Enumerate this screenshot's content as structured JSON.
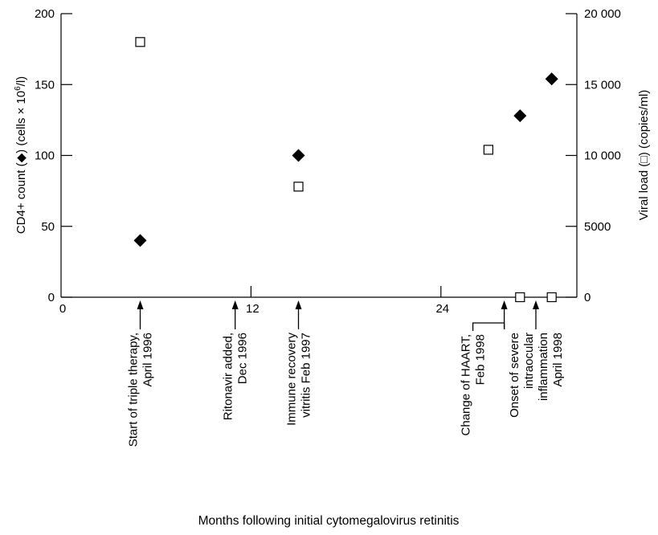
{
  "chart_data": {
    "type": "scatter",
    "xlabel": "Months following initial cytomegalovirus retinitis",
    "ylabel_left": {
      "pre": "CD4+ count (",
      "post": ") (cells × 10",
      "sup": "6",
      "end": "/l)"
    },
    "ylabel_right": {
      "pre": "Viral load (",
      "post": ") (copies/ml)"
    },
    "xlim": [
      0,
      30
    ],
    "ylim_left": [
      0,
      200
    ],
    "ylim_right": [
      0,
      20000
    ],
    "x_ticks": [
      {
        "value": 0,
        "label": "0"
      },
      {
        "value": 12,
        "label": "12"
      },
      {
        "value": 24,
        "label": "24"
      }
    ],
    "y_left_ticks": [
      {
        "value": 0,
        "label": "0"
      },
      {
        "value": 50,
        "label": "50"
      },
      {
        "value": 100,
        "label": "100"
      },
      {
        "value": 150,
        "label": "150"
      },
      {
        "value": 200,
        "label": "200"
      }
    ],
    "y_right_ticks": [
      {
        "value": 0,
        "label": "0"
      },
      {
        "value": 5000,
        "label": "5000"
      },
      {
        "value": 10000,
        "label": "10 000"
      },
      {
        "value": 15000,
        "label": "15 000"
      },
      {
        "value": 20000,
        "label": "20 000"
      }
    ],
    "series": [
      {
        "marker": "filled-diamond",
        "axis": "left",
        "points": [
          {
            "x": 5,
            "y": 40
          },
          {
            "x": 15,
            "y": 100
          },
          {
            "x": 29,
            "y": 128
          },
          {
            "x": 31,
            "y": 154
          }
        ]
      },
      {
        "marker": "open-square",
        "axis": "right",
        "points": [
          {
            "x": 5,
            "y": 18000
          },
          {
            "x": 15,
            "y": 7800
          },
          {
            "x": 27,
            "y": 10400
          },
          {
            "x": 29,
            "y": 0
          },
          {
            "x": 31,
            "y": 0
          }
        ]
      }
    ],
    "annotations": [
      {
        "x": 5,
        "lines": [
          "Start of triple therapy,",
          "April 1996"
        ]
      },
      {
        "x": 11,
        "lines": [
          "Ritonavir added,",
          "Dec 1996"
        ]
      },
      {
        "x": 15,
        "lines": [
          "Immune recovery",
          "vitritis Feb 1997"
        ]
      },
      {
        "x": 28,
        "elbow": true,
        "lines": [
          "Change of HAART,",
          "Feb 1998"
        ]
      },
      {
        "x": 30,
        "lines": [
          "Onset of severe",
          "intraocular",
          "inflammation",
          "April 1998"
        ]
      }
    ]
  }
}
